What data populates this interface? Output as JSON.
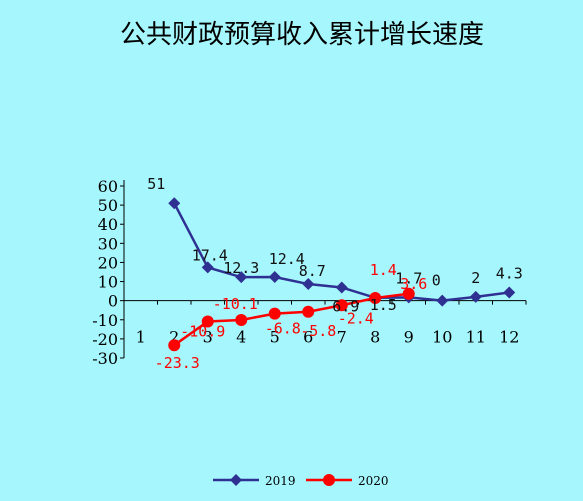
{
  "chart_data": {
    "type": "line",
    "title": "公共财政预算收入累计增长速度",
    "xlabel": "",
    "ylabel": "",
    "x": [
      "1",
      "2",
      "3",
      "4",
      "5",
      "6",
      "7",
      "8",
      "9",
      "10",
      "11",
      "12"
    ],
    "ylim": [
      -30,
      60
    ],
    "yticks": [
      "60",
      "50",
      "40",
      "30",
      "20",
      "10",
      "0",
      "-10",
      "-20",
      "-30"
    ],
    "grid": false,
    "legend": "bottom",
    "series": [
      {
        "name": "2019",
        "color": "#2e3192",
        "marker": "diamond",
        "values": [
          null,
          51,
          17.4,
          12.3,
          12.4,
          8.7,
          6.9,
          1.5,
          1.7,
          0,
          2,
          4.3
        ],
        "labels": [
          null,
          "51",
          "17.4",
          "12.3",
          "12.4",
          "8.7",
          "6.9",
          "1.5",
          "1.7",
          "0",
          "2",
          "4.3"
        ]
      },
      {
        "name": "2020",
        "color": "#ff0000",
        "marker": "circle",
        "values": [
          null,
          -23.3,
          -10.9,
          -10.1,
          -6.8,
          -5.8,
          -2.4,
          1.4,
          3.6,
          null,
          null,
          null
        ],
        "labels": [
          null,
          "-23.3",
          "-10.9",
          "-10.1",
          "-6.8",
          "-5.8",
          "-2.4",
          "1.4",
          "3.6",
          null,
          null,
          null
        ]
      }
    ]
  }
}
